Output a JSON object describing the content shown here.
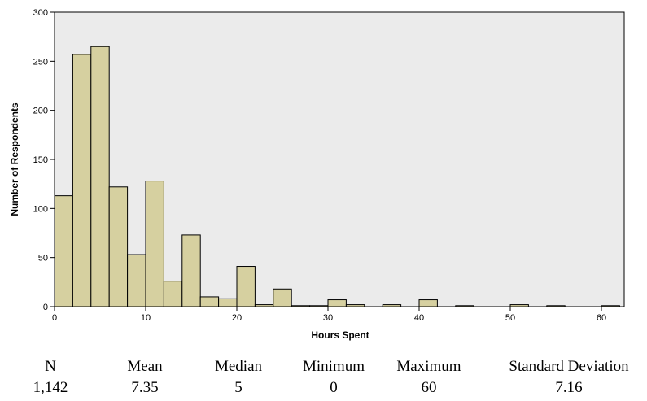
{
  "chart_data": {
    "type": "bar",
    "title": "",
    "xlabel": "Hours Spent",
    "ylabel": "Number of Respondents",
    "xlim": [
      0,
      62.5
    ],
    "ylim": [
      0,
      300
    ],
    "bin_width": 2,
    "xticks": [
      "0",
      "10",
      "20",
      "30",
      "40",
      "50",
      "60"
    ],
    "yticks": [
      "0",
      "50",
      "100",
      "150",
      "200",
      "250",
      "300"
    ],
    "bins": [
      {
        "x": 0,
        "value": 113
      },
      {
        "x": 2,
        "value": 257
      },
      {
        "x": 4,
        "value": 265
      },
      {
        "x": 6,
        "value": 122
      },
      {
        "x": 8,
        "value": 53
      },
      {
        "x": 10,
        "value": 128
      },
      {
        "x": 12,
        "value": 26
      },
      {
        "x": 14,
        "value": 73
      },
      {
        "x": 16,
        "value": 10
      },
      {
        "x": 18,
        "value": 8
      },
      {
        "x": 20,
        "value": 41
      },
      {
        "x": 22,
        "value": 2
      },
      {
        "x": 24,
        "value": 18
      },
      {
        "x": 26,
        "value": 1
      },
      {
        "x": 28,
        "value": 1
      },
      {
        "x": 30,
        "value": 7
      },
      {
        "x": 32,
        "value": 2
      },
      {
        "x": 36,
        "value": 2
      },
      {
        "x": 40,
        "value": 7
      },
      {
        "x": 44,
        "value": 1
      },
      {
        "x": 50,
        "value": 2
      },
      {
        "x": 54,
        "value": 1
      },
      {
        "x": 60,
        "value": 1
      }
    ],
    "grid": false,
    "plot_background": "#ebebeb",
    "bar_color": "#d6d0a0",
    "bar_stroke": "#000000"
  },
  "stats": [
    {
      "label": "N",
      "value": "1,142"
    },
    {
      "label": "Mean",
      "value": "7.35"
    },
    {
      "label": "Median",
      "value": "5"
    },
    {
      "label": "Minimum",
      "value": "0"
    },
    {
      "label": "Maximum",
      "value": "60"
    },
    {
      "label": "Standard Deviation",
      "value": "7.16"
    }
  ]
}
